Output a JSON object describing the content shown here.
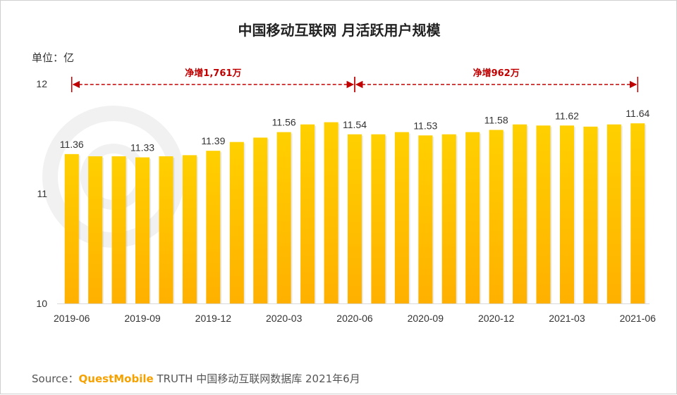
{
  "chart_data": {
    "type": "bar",
    "title": "中国移动互联网 月活跃用户规模",
    "unit_label": "单位：亿",
    "ylim": [
      10,
      12
    ],
    "yticks": [
      "10",
      "11",
      "12"
    ],
    "categories": [
      "2019-06",
      "2019-07",
      "2019-08",
      "2019-09",
      "2019-10",
      "2019-11",
      "2019-12",
      "2020-01",
      "2020-02",
      "2020-03",
      "2020-04",
      "2020-05",
      "2020-06",
      "2020-07",
      "2020-08",
      "2020-09",
      "2020-10",
      "2020-11",
      "2020-12",
      "2021-01",
      "2021-02",
      "2021-03",
      "2021-04",
      "2021-05",
      "2021-06"
    ],
    "values": [
      11.36,
      11.34,
      11.34,
      11.33,
      11.34,
      11.35,
      11.39,
      11.47,
      11.51,
      11.56,
      11.63,
      11.65,
      11.54,
      11.54,
      11.56,
      11.53,
      11.54,
      11.56,
      11.58,
      11.63,
      11.62,
      11.62,
      11.61,
      11.63,
      11.64
    ],
    "x_tick_labels": [
      {
        "index": 0,
        "label": "2019-06"
      },
      {
        "index": 3,
        "label": "2019-09"
      },
      {
        "index": 6,
        "label": "2019-12"
      },
      {
        "index": 9,
        "label": "2020-03"
      },
      {
        "index": 12,
        "label": "2020-06"
      },
      {
        "index": 15,
        "label": "2020-09"
      },
      {
        "index": 18,
        "label": "2020-12"
      },
      {
        "index": 21,
        "label": "2021-03"
      },
      {
        "index": 24,
        "label": "2021-06"
      }
    ],
    "data_labels": [
      {
        "index": 0,
        "label": "11.36"
      },
      {
        "index": 3,
        "label": "11.33"
      },
      {
        "index": 6,
        "label": "11.39"
      },
      {
        "index": 9,
        "label": "11.56"
      },
      {
        "index": 12,
        "label": "11.54"
      },
      {
        "index": 15,
        "label": "11.53"
      },
      {
        "index": 18,
        "label": "11.58"
      },
      {
        "index": 21,
        "label": "11.62"
      },
      {
        "index": 24,
        "label": "11.64"
      }
    ],
    "annotations": [
      {
        "from_index": 0,
        "to_index": 12,
        "label": "净增1,761万"
      },
      {
        "from_index": 12,
        "to_index": 24,
        "label": "净增962万"
      }
    ],
    "bar_color_top": "#ffd000",
    "bar_color_bottom": "#ffb000",
    "annotation_color": "#c00000",
    "grid": false
  },
  "source": {
    "prefix": "Source：",
    "brand": "QuestMobile",
    "text": " TRUTH 中国移动互联网数据库 2021年6月"
  }
}
